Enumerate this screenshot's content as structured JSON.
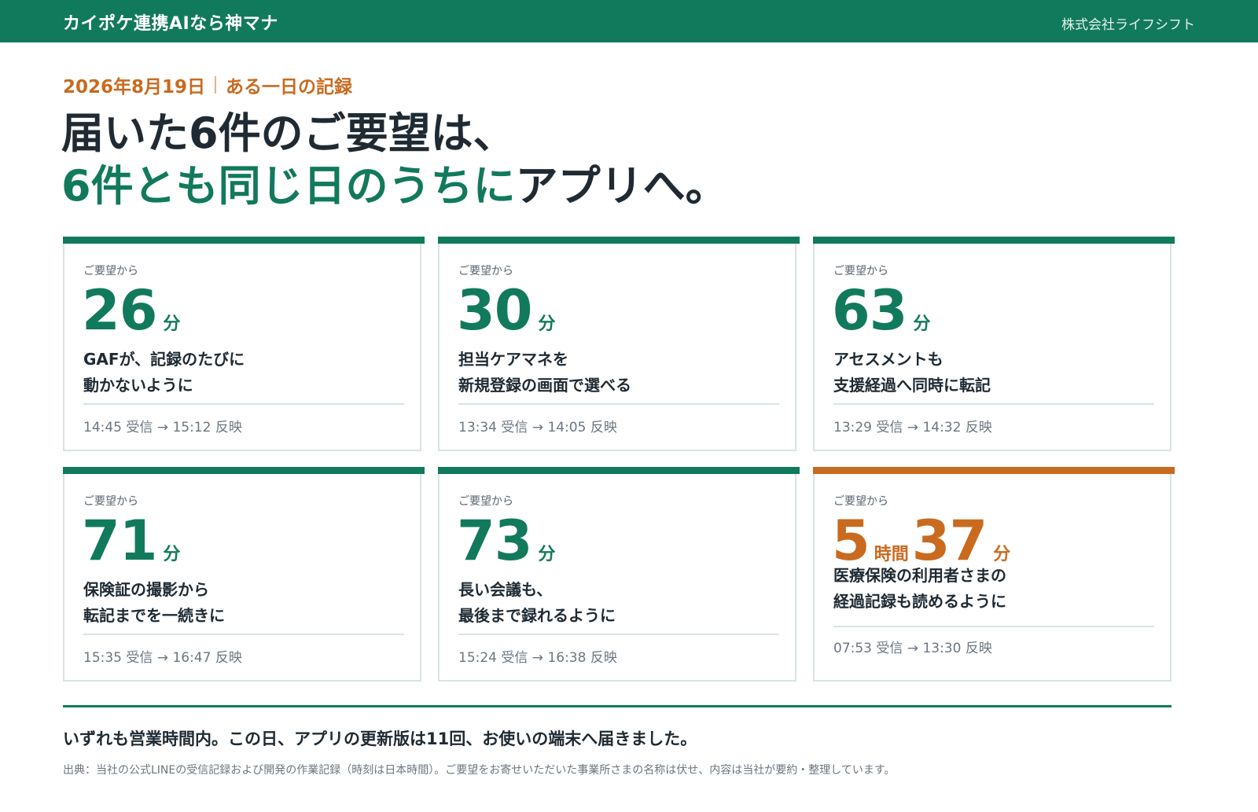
{
  "header": {
    "brand": "カイポケ連携AIなら神マナ",
    "company": "株式会社ライフシフト"
  },
  "dateline": {
    "date": "2026年8月19日",
    "label": "ある一日の記録"
  },
  "headline": {
    "line1": "届いた6件のご要望は、",
    "line2_accent": "6件とも同じ日のうちに",
    "line2_rest": "アプリへ。"
  },
  "cards": [
    {
      "kicker": "ご要望から",
      "number": "26",
      "unit": "分",
      "desc_line1": "GAFが、記録のたびに",
      "desc_line2": "動かないように",
      "times": "14:45 受信 → 15:12 反映",
      "accent": "#127a5c"
    },
    {
      "kicker": "ご要望から",
      "number": "30",
      "unit": "分",
      "desc_line1": "担当ケアマネを",
      "desc_line2": "新規登録の画面で選べる",
      "times": "13:34 受信 → 14:05 反映",
      "accent": "#127a5c"
    },
    {
      "kicker": "ご要望から",
      "number": "63",
      "unit": "分",
      "desc_line1": "アセスメントも",
      "desc_line2": "支援経過へ同時に転記",
      "times": "13:29 受信 → 14:32 反映",
      "accent": "#127a5c"
    },
    {
      "kicker": "ご要望から",
      "number": "71",
      "unit": "分",
      "desc_line1": "保険証の撮影から",
      "desc_line2": "転記までを一続きに",
      "times": "15:35 受信 → 16:47 反映",
      "accent": "#127a5c"
    },
    {
      "kicker": "ご要望から",
      "number": "73",
      "unit": "分",
      "desc_line1": "長い会議も、",
      "desc_line2": "最後まで録れるように",
      "times": "15:24 受信 → 16:38 反映",
      "accent": "#127a5c"
    },
    {
      "kicker": "ご要望から",
      "number_hours": "5",
      "unit_hours": "時間",
      "number": "37",
      "unit": "分",
      "desc_line1": "医療保険の利用者さまの",
      "desc_line2": "経過記録も読めるように",
      "times": "07:53 受信 → 13:30 反映",
      "accent": "#c96a1f"
    }
  ],
  "footer": {
    "summary": "いずれも営業時間内。この日、アプリの更新版は11回、お使いの端末へ届きました。",
    "source": "出典：当社の公式LINEの受信記録および開発の作業記録（時刻は日本時間）。ご要望をお寄せいただいた事業所さまの名称は伏せ、内容は当社が要約・整理しています。"
  }
}
